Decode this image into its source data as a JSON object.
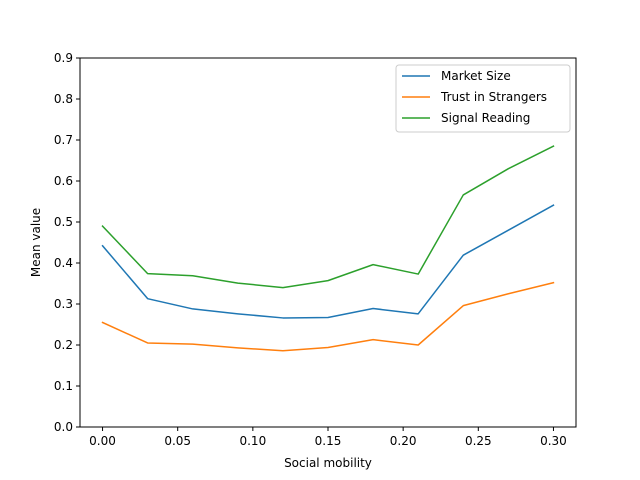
{
  "chart_data": {
    "type": "line",
    "title": "",
    "xlabel": "Social mobility",
    "ylabel": "Mean value",
    "x": [
      0.0,
      0.03,
      0.06,
      0.09,
      0.12,
      0.15,
      0.18,
      0.21,
      0.24,
      0.27,
      0.3
    ],
    "xlim": [
      -0.015,
      0.315
    ],
    "ylim": [
      0.0,
      0.9
    ],
    "xticks": [
      0.0,
      0.05,
      0.1,
      0.15,
      0.2,
      0.25,
      0.3
    ],
    "xtick_labels": [
      "0.00",
      "0.05",
      "0.10",
      "0.15",
      "0.20",
      "0.25",
      "0.30"
    ],
    "yticks": [
      0.0,
      0.1,
      0.2,
      0.3,
      0.4,
      0.5,
      0.6,
      0.7,
      0.8,
      0.9
    ],
    "ytick_labels": [
      "0.0",
      "0.1",
      "0.2",
      "0.3",
      "0.4",
      "0.5",
      "0.6",
      "0.7",
      "0.8",
      "0.9"
    ],
    "grid": false,
    "legend_position": "top-right",
    "series": [
      {
        "name": "Market Size",
        "color": "#1f77b4",
        "values": [
          0.442,
          0.313,
          0.288,
          0.276,
          0.266,
          0.267,
          0.289,
          0.276,
          0.419,
          0.48,
          0.541
        ]
      },
      {
        "name": "Trust in Strangers",
        "color": "#ff7f0e",
        "values": [
          0.255,
          0.205,
          0.202,
          0.193,
          0.186,
          0.194,
          0.213,
          0.2,
          0.296,
          0.325,
          0.352
        ]
      },
      {
        "name": "Signal Reading",
        "color": "#2ca02c",
        "values": [
          0.49,
          0.374,
          0.369,
          0.351,
          0.34,
          0.357,
          0.396,
          0.373,
          0.566,
          0.63,
          0.685
        ]
      }
    ]
  }
}
